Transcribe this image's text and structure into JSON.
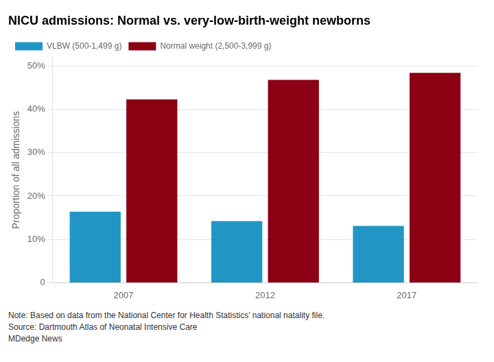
{
  "chart_data": {
    "type": "bar",
    "title": "NICU admissions: Normal vs. very-low-birth-weight newborns",
    "categories": [
      "2007",
      "2012",
      "2017"
    ],
    "series": [
      {
        "name": "VLBW (500-1,499 g)",
        "color": "#2196c4",
        "values": [
          16.4,
          14.2,
          13.1
        ]
      },
      {
        "name": "Normal weight (2,500-3,999 g)",
        "color": "#8b0013",
        "values": [
          42.3,
          46.8,
          48.4
        ]
      }
    ],
    "ylabel": "Proportion of all admissions",
    "ylim": [
      0,
      52
    ],
    "yticks": [
      0,
      {
        "value": 10,
        "label": "10%"
      },
      {
        "value": 20,
        "label": "20%"
      },
      {
        "value": 30,
        "label": "30%"
      },
      {
        "value": 40,
        "label": "40%"
      },
      {
        "value": 50,
        "label": "50%"
      }
    ],
    "grid": true,
    "legend": "top",
    "annotations": [
      "Note: Based on data from the National Center for Health Statistics’ national natality file.",
      "Source: Dartmouth Atlas of Neonatal Intensive Care",
      "MDedge News"
    ]
  }
}
